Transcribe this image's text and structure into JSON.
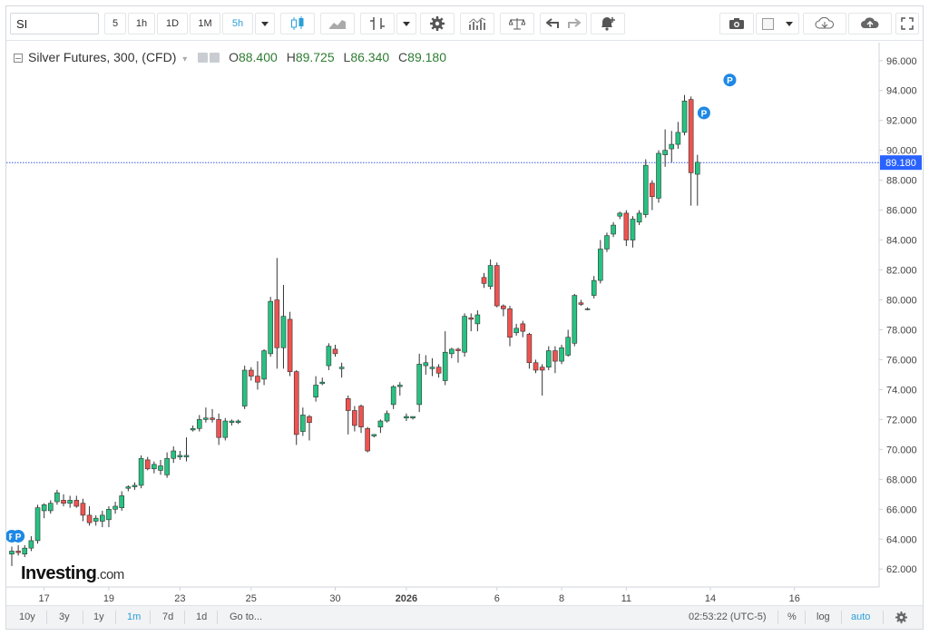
{
  "toolbar": {
    "symbol": "SI",
    "intervals": [
      "5",
      "1h",
      "1D",
      "1M",
      "5h"
    ],
    "active_interval": "5h"
  },
  "legend": {
    "title": "Silver Futures, 300, (CFD)",
    "o_label": "O",
    "o_value": "88.400",
    "h_label": "H",
    "h_value": "89.725",
    "l_label": "L",
    "l_value": "86.340",
    "c_label": "C",
    "c_value": "89.180"
  },
  "logo": {
    "brand": "Investing",
    "suffix": ".com"
  },
  "bottombar": {
    "ranges": [
      "10y",
      "3y",
      "1y",
      "1m",
      "7d",
      "1d"
    ],
    "active_range": "1m",
    "goto_label": "Go to...",
    "time": "02:53:22 (UTC-5)",
    "percent_label": "%",
    "log_label": "log",
    "auto_label": "auto"
  },
  "colors": {
    "up": "#26c281",
    "down": "#ef5350",
    "axis_text": "#444444",
    "price_line": "#3b5bdb",
    "price_tag": "#2962ff",
    "marker": "#1e88e5"
  },
  "chart_data": {
    "type": "candlestick",
    "ylim": [
      60.8,
      97.2
    ],
    "y_ticks": [
      "62.000",
      "64.000",
      "66.000",
      "68.000",
      "70.000",
      "72.000",
      "74.000",
      "76.000",
      "78.000",
      "80.000",
      "82.000",
      "84.000",
      "86.000",
      "88.000",
      "90.000",
      "92.000",
      "94.000",
      "96.000"
    ],
    "y_tick_values": [
      62,
      64,
      66,
      68,
      70,
      72,
      74,
      76,
      78,
      80,
      82,
      84,
      86,
      88,
      90,
      92,
      94,
      96
    ],
    "x_ticks": [
      {
        "label": "17",
        "index": 5
      },
      {
        "label": "19",
        "index": 15
      },
      {
        "label": "23",
        "index": 26
      },
      {
        "label": "25",
        "index": 37
      },
      {
        "label": "30",
        "index": 50
      },
      {
        "label": "2026",
        "index": 61
      },
      {
        "label": "6",
        "index": 75
      },
      {
        "label": "8",
        "index": 85
      },
      {
        "label": "11",
        "index": 95
      },
      {
        "label": "14",
        "index": 108
      },
      {
        "label": "16",
        "index": 121
      }
    ],
    "last_price": 89.18,
    "last_price_label": "89.180",
    "markers": [
      {
        "index": 0,
        "label": "P",
        "price": 64.2
      },
      {
        "index": 1,
        "label": "P",
        "price": 64.2
      },
      {
        "index": 107,
        "label": "P",
        "price": 92.5
      },
      {
        "index": 111,
        "label": "P",
        "price": 94.7
      }
    ],
    "candles": [
      {
        "o": 63.0,
        "h": 63.5,
        "l": 62.2,
        "c": 63.2
      },
      {
        "o": 63.2,
        "h": 63.6,
        "l": 62.9,
        "c": 63.1
      },
      {
        "o": 63.0,
        "h": 63.6,
        "l": 62.8,
        "c": 63.4
      },
      {
        "o": 63.4,
        "h": 64.2,
        "l": 63.2,
        "c": 63.9
      },
      {
        "o": 63.9,
        "h": 66.3,
        "l": 63.7,
        "c": 66.1
      },
      {
        "o": 65.9,
        "h": 66.4,
        "l": 65.4,
        "c": 66.3
      },
      {
        "o": 65.9,
        "h": 66.6,
        "l": 65.7,
        "c": 66.4
      },
      {
        "o": 66.5,
        "h": 67.3,
        "l": 66.3,
        "c": 67.1
      },
      {
        "o": 66.6,
        "h": 67.0,
        "l": 66.2,
        "c": 66.4
      },
      {
        "o": 66.4,
        "h": 66.9,
        "l": 66.1,
        "c": 66.6
      },
      {
        "o": 66.6,
        "h": 66.9,
        "l": 66.1,
        "c": 66.2
      },
      {
        "o": 66.4,
        "h": 66.7,
        "l": 65.2,
        "c": 65.6
      },
      {
        "o": 65.6,
        "h": 66.2,
        "l": 64.9,
        "c": 65.1
      },
      {
        "o": 65.2,
        "h": 65.6,
        "l": 64.9,
        "c": 65.4
      },
      {
        "o": 65.2,
        "h": 65.9,
        "l": 64.8,
        "c": 65.6
      },
      {
        "o": 65.3,
        "h": 66.2,
        "l": 64.8,
        "c": 66.0
      },
      {
        "o": 66.0,
        "h": 66.5,
        "l": 65.7,
        "c": 66.2
      },
      {
        "o": 66.1,
        "h": 67.2,
        "l": 65.9,
        "c": 66.9
      },
      {
        "o": 67.4,
        "h": 67.6,
        "l": 67.2,
        "c": 67.5
      },
      {
        "o": 67.5,
        "h": 67.8,
        "l": 67.3,
        "c": 67.6
      },
      {
        "o": 67.6,
        "h": 69.6,
        "l": 67.4,
        "c": 69.4
      },
      {
        "o": 69.3,
        "h": 69.5,
        "l": 68.6,
        "c": 68.7
      },
      {
        "o": 68.7,
        "h": 69.2,
        "l": 68.4,
        "c": 69.0
      },
      {
        "o": 68.6,
        "h": 69.3,
        "l": 68.3,
        "c": 68.9
      },
      {
        "o": 68.3,
        "h": 69.8,
        "l": 68.1,
        "c": 69.4
      },
      {
        "o": 69.4,
        "h": 70.2,
        "l": 69.1,
        "c": 69.9
      },
      {
        "o": 69.5,
        "h": 69.9,
        "l": 69.3,
        "c": 69.6
      },
      {
        "o": 69.5,
        "h": 70.8,
        "l": 69.2,
        "c": 69.6
      },
      {
        "o": 71.3,
        "h": 71.6,
        "l": 71.2,
        "c": 71.4
      },
      {
        "o": 71.4,
        "h": 72.3,
        "l": 71.2,
        "c": 72.0
      },
      {
        "o": 72.0,
        "h": 72.8,
        "l": 71.8,
        "c": 72.1
      },
      {
        "o": 72.1,
        "h": 72.7,
        "l": 71.8,
        "c": 72.0
      },
      {
        "o": 72.0,
        "h": 72.4,
        "l": 70.3,
        "c": 70.8
      },
      {
        "o": 70.8,
        "h": 72.1,
        "l": 70.6,
        "c": 71.9
      },
      {
        "o": 71.8,
        "h": 72.0,
        "l": 71.6,
        "c": 71.9
      },
      {
        "o": 71.8,
        "h": 72.0,
        "l": 71.7,
        "c": 71.9
      },
      {
        "o": 72.9,
        "h": 75.6,
        "l": 72.7,
        "c": 75.3
      },
      {
        "o": 75.3,
        "h": 75.5,
        "l": 74.6,
        "c": 74.9
      },
      {
        "o": 74.9,
        "h": 75.9,
        "l": 74.0,
        "c": 74.5
      },
      {
        "o": 74.7,
        "h": 76.7,
        "l": 74.3,
        "c": 76.6
      },
      {
        "o": 76.4,
        "h": 80.2,
        "l": 76.2,
        "c": 79.9
      },
      {
        "o": 80.0,
        "h": 82.8,
        "l": 75.4,
        "c": 76.8
      },
      {
        "o": 76.8,
        "h": 81.0,
        "l": 75.4,
        "c": 78.9
      },
      {
        "o": 78.7,
        "h": 79.2,
        "l": 74.9,
        "c": 75.2
      },
      {
        "o": 75.2,
        "h": 75.3,
        "l": 70.3,
        "c": 71.0
      },
      {
        "o": 71.2,
        "h": 72.8,
        "l": 70.9,
        "c": 72.3
      },
      {
        "o": 72.2,
        "h": 72.3,
        "l": 70.6,
        "c": 71.8
      },
      {
        "o": 73.5,
        "h": 74.9,
        "l": 73.2,
        "c": 74.3
      },
      {
        "o": 74.4,
        "h": 74.8,
        "l": 74.3,
        "c": 74.5
      },
      {
        "o": 75.6,
        "h": 77.1,
        "l": 75.3,
        "c": 76.9
      },
      {
        "o": 76.7,
        "h": 77.0,
        "l": 76.2,
        "c": 76.4
      },
      {
        "o": 75.4,
        "h": 75.8,
        "l": 74.8,
        "c": 75.5
      },
      {
        "o": 73.4,
        "h": 73.6,
        "l": 71.0,
        "c": 72.6
      },
      {
        "o": 72.6,
        "h": 72.9,
        "l": 71.2,
        "c": 71.6
      },
      {
        "o": 72.9,
        "h": 73.0,
        "l": 71.1,
        "c": 71.5
      },
      {
        "o": 71.4,
        "h": 71.5,
        "l": 69.8,
        "c": 69.9
      },
      {
        "o": 70.9,
        "h": 71.0,
        "l": 70.8,
        "c": 71.0
      },
      {
        "o": 71.5,
        "h": 72.0,
        "l": 71.1,
        "c": 71.9
      },
      {
        "o": 71.9,
        "h": 72.6,
        "l": 71.8,
        "c": 72.4
      },
      {
        "o": 73.0,
        "h": 74.3,
        "l": 72.7,
        "c": 74.2
      },
      {
        "o": 74.2,
        "h": 74.5,
        "l": 73.6,
        "c": 74.3
      },
      {
        "o": 72.1,
        "h": 72.4,
        "l": 71.9,
        "c": 72.2
      },
      {
        "o": 72.1,
        "h": 72.2,
        "l": 72.0,
        "c": 72.2
      },
      {
        "o": 73.0,
        "h": 76.4,
        "l": 72.5,
        "c": 75.7
      },
      {
        "o": 75.6,
        "h": 76.3,
        "l": 75.0,
        "c": 75.8
      },
      {
        "o": 75.4,
        "h": 76.1,
        "l": 74.9,
        "c": 75.5
      },
      {
        "o": 75.5,
        "h": 75.7,
        "l": 74.8,
        "c": 75.1
      },
      {
        "o": 74.6,
        "h": 77.9,
        "l": 74.3,
        "c": 76.5
      },
      {
        "o": 76.4,
        "h": 76.8,
        "l": 76.1,
        "c": 76.7
      },
      {
        "o": 76.7,
        "h": 76.8,
        "l": 75.8,
        "c": 76.6
      },
      {
        "o": 76.5,
        "h": 79.1,
        "l": 76.2,
        "c": 78.9
      },
      {
        "o": 78.8,
        "h": 79.1,
        "l": 77.9,
        "c": 78.7
      },
      {
        "o": 78.4,
        "h": 79.3,
        "l": 77.9,
        "c": 79.0
      },
      {
        "o": 81.5,
        "h": 81.8,
        "l": 80.8,
        "c": 81.1
      },
      {
        "o": 80.9,
        "h": 82.7,
        "l": 80.7,
        "c": 82.3
      },
      {
        "o": 82.3,
        "h": 82.5,
        "l": 79.5,
        "c": 79.6
      },
      {
        "o": 79.6,
        "h": 79.7,
        "l": 78.9,
        "c": 79.4
      },
      {
        "o": 79.4,
        "h": 79.6,
        "l": 76.9,
        "c": 77.5
      },
      {
        "o": 77.8,
        "h": 78.4,
        "l": 77.6,
        "c": 78.1
      },
      {
        "o": 78.4,
        "h": 78.6,
        "l": 77.5,
        "c": 77.9
      },
      {
        "o": 77.7,
        "h": 77.8,
        "l": 75.4,
        "c": 75.8
      },
      {
        "o": 75.8,
        "h": 76.0,
        "l": 75.1,
        "c": 75.3
      },
      {
        "o": 75.5,
        "h": 75.7,
        "l": 73.6,
        "c": 75.3
      },
      {
        "o": 75.5,
        "h": 76.9,
        "l": 75.3,
        "c": 76.6
      },
      {
        "o": 76.6,
        "h": 76.9,
        "l": 75.1,
        "c": 75.9
      },
      {
        "o": 75.9,
        "h": 77.0,
        "l": 75.7,
        "c": 76.8
      },
      {
        "o": 76.3,
        "h": 78.0,
        "l": 76.2,
        "c": 77.5
      },
      {
        "o": 77.1,
        "h": 80.4,
        "l": 76.9,
        "c": 80.3
      },
      {
        "o": 79.8,
        "h": 80.0,
        "l": 79.6,
        "c": 79.7
      },
      {
        "o": 79.4,
        "h": 79.5,
        "l": 79.3,
        "c": 79.4
      },
      {
        "o": 80.3,
        "h": 81.6,
        "l": 80.1,
        "c": 81.3
      },
      {
        "o": 81.3,
        "h": 84.0,
        "l": 81.1,
        "c": 83.4
      },
      {
        "o": 83.4,
        "h": 84.5,
        "l": 83.2,
        "c": 84.3
      },
      {
        "o": 84.4,
        "h": 85.2,
        "l": 84.2,
        "c": 85.0
      },
      {
        "o": 85.6,
        "h": 85.9,
        "l": 85.4,
        "c": 85.8
      },
      {
        "o": 85.8,
        "h": 86.0,
        "l": 83.6,
        "c": 84.0
      },
      {
        "o": 84.0,
        "h": 85.6,
        "l": 83.5,
        "c": 85.4
      },
      {
        "o": 85.2,
        "h": 86.0,
        "l": 85.0,
        "c": 85.8
      },
      {
        "o": 85.7,
        "h": 89.4,
        "l": 85.5,
        "c": 89.0
      },
      {
        "o": 87.8,
        "h": 88.0,
        "l": 86.0,
        "c": 86.9
      },
      {
        "o": 86.8,
        "h": 90.0,
        "l": 86.5,
        "c": 89.8
      },
      {
        "o": 89.7,
        "h": 91.4,
        "l": 88.9,
        "c": 90.0
      },
      {
        "o": 90.1,
        "h": 91.3,
        "l": 89.2,
        "c": 90.4
      },
      {
        "o": 90.4,
        "h": 91.9,
        "l": 90.1,
        "c": 91.2
      },
      {
        "o": 91.2,
        "h": 93.7,
        "l": 91.0,
        "c": 93.3
      },
      {
        "o": 93.4,
        "h": 93.6,
        "l": 86.3,
        "c": 88.5
      },
      {
        "o": 88.4,
        "h": 89.7,
        "l": 86.3,
        "c": 89.2
      }
    ]
  }
}
